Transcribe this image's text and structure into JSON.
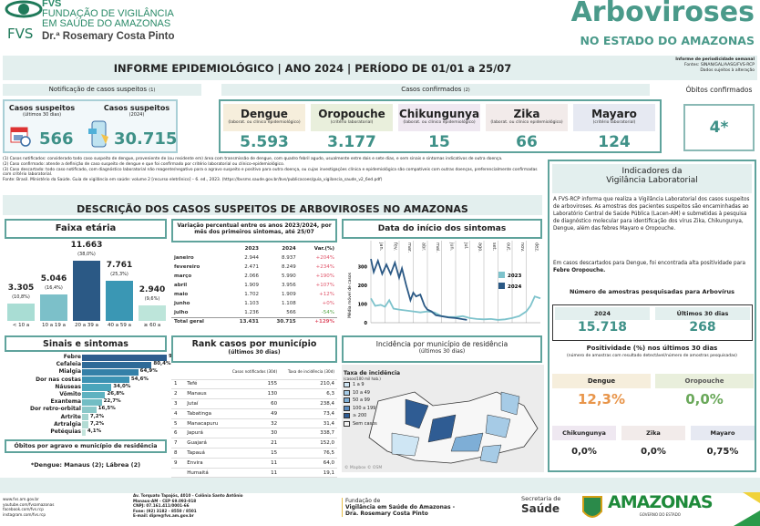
{
  "header": {
    "org_short": "FVS",
    "org_line1": "FUNDAÇÃO DE VIGILÂNCIA",
    "org_line2": "EM SAÚDE DO AMAZONAS",
    "org_line3": "Dr.ª Rosemary Costa Pinto",
    "title": "Arboviroses",
    "subtitle": "NO ESTADO DO AMAZONAS"
  },
  "banner": {
    "title": "INFORME EPIDEMIOLÓGICO | ANO 2024 | PERÍODO DE 01/01 a 25/07",
    "note1": "Informe de periodicidade semanal",
    "note2": "Fontes: SINAN/GAL/AASG/FVS-RCP",
    "note3": "Dados sujeitos à alteração"
  },
  "sections": {
    "suspeitos": "Notificação de casos suspeitos",
    "suspeitos_ref": "(1)",
    "confirmados": "Casos confirmados",
    "confirmados_ref": "(2)",
    "obitos": "Óbitos confirmados"
  },
  "suspeitos": [
    {
      "label": "Casos suspeitos",
      "sub": "(últimos 30 dias)",
      "value": "566"
    },
    {
      "label": "Casos suspeitos",
      "sub": "(2024)",
      "value": "30.715"
    }
  ],
  "confirmados": [
    {
      "name": "Dengue",
      "sub": "(laborat. ou clínico epidemiológico)",
      "value": "5.593",
      "bg": "#f6eedc"
    },
    {
      "name": "Oropouche",
      "sub": "(critério laboratorial)",
      "value": "3.177",
      "bg": "#e9efdc"
    },
    {
      "name": "Chikungunya",
      "sub": "(laborat. ou clínico epidemiológico)",
      "value": "15",
      "bg": "#efe8f1"
    },
    {
      "name": "Zika",
      "sub": "(laborat. ou clínico epidemiológico)",
      "value": "66",
      "bg": "#f2ebea"
    },
    {
      "name": "Mayaro",
      "sub": "(critério laboratorial)",
      "value": "124",
      "bg": "#e6e9f2"
    }
  ],
  "obitos": {
    "value": "4*"
  },
  "footnotes": [
    "(1) Casos notificados: considerado todo caso suspeito de dengue, proveniente de (ou residente em) área com transmissão de dengue, com quadro febril agudo, usualmente entre dois e sete dias, e sem sinais e sintomas indicativos de outra doença.",
    "(2) Caso confirmado: atende a definição de caso suspeito de dengue e que foi confirmado por critério laboratorial ou clínico-epidemiológico.",
    "(3) Caso descartado: todo caso notificado, com diagnóstico laboratorial não reagente/negativo para o agravo suspeito e positivo para outra doença, ou cujas investigações clínica e epidemiológica são compatíveis com outras doenças, preferencialmente confirmadas com critério laboratorial.",
    "Fonte: Brasil. Ministério da Saúde. Guia de vigilância em saúde: volume 2 [recurso eletrônico] – 6. ed., 2023. (https://bvsms.saude.gov.br/bvs/publicacoes/guia_vigilancia_saude_v2_6ed.pdf)"
  ],
  "descricao": {
    "title": "DESCRIÇÃO DOS CASOS SUSPEITOS DE ARBOVIROSES NO AMAZONAS"
  },
  "faixa": {
    "title": "Faixa etária",
    "bars": [
      {
        "label": "< 10 a",
        "value": "3.305",
        "pct": "(10,8%)",
        "n": 3305,
        "color": "#a9ddd4"
      },
      {
        "label": "10 a 19 a",
        "value": "5.046",
        "pct": "(16,4%)",
        "n": 5046,
        "color": "#7cc0c9"
      },
      {
        "label": "20 a 39 a",
        "value": "11.663",
        "pct": "(38,0%)",
        "n": 11663,
        "color": "#2b5985"
      },
      {
        "label": "40 a 59 a",
        "value": "7.761",
        "pct": "(25,3%)",
        "n": 7761,
        "color": "#3a97b4"
      },
      {
        "label": "≥ 60 a",
        "value": "2.940",
        "pct": "(9,6%)",
        "n": 2940,
        "color": "#bde5da"
      }
    ]
  },
  "variacao": {
    "title": "Variação percentual entre os anos 2023/2024, por mês dos primeiros sintomas, até 25/07",
    "cols": [
      "",
      "2023",
      "2024",
      "Var.(%)"
    ],
    "rows": [
      [
        "janeiro",
        "2.944",
        "8.937",
        "+204%"
      ],
      [
        "fevereiro",
        "2.471",
        "8.249",
        "+234%"
      ],
      [
        "março",
        "2.066",
        "5.990",
        "+190%"
      ],
      [
        "abril",
        "1.909",
        "3.956",
        "+107%"
      ],
      [
        "maio",
        "1.702",
        "1.909",
        "+12%"
      ],
      [
        "junho",
        "1.103",
        "1.108",
        "+0%"
      ],
      [
        "julho",
        "1.236",
        "566",
        "-54%"
      ],
      [
        "Total geral",
        "13.431",
        "30.715",
        "+129%"
      ]
    ]
  },
  "chart_data": [
    {
      "type": "line",
      "title": "Data do início dos sintomas",
      "ylabel": "Média móvel de casos",
      "categories": [
        "jan.",
        "fev.",
        "mar.",
        "abr.",
        "mai.",
        "jun.",
        "jul.",
        "ago.",
        "set.",
        "out.",
        "nov.",
        "dez."
      ],
      "ylim": [
        0,
        350
      ],
      "yticks": [
        0,
        100,
        200,
        300
      ],
      "legend": "right",
      "series": [
        {
          "name": "2023",
          "color": "#7ec3cc",
          "x": [
            0,
            0.3,
            0.7,
            1,
            1.3,
            1.6,
            2,
            2.5,
            3,
            3.5,
            4,
            4.5,
            5,
            5.5,
            6,
            6.5,
            7,
            7.5,
            8,
            8.5,
            9,
            9.5,
            10,
            10.5,
            11,
            11.3,
            11.6,
            12
          ],
          "values": [
            130,
            90,
            95,
            85,
            120,
            75,
            70,
            65,
            60,
            55,
            60,
            55,
            35,
            30,
            30,
            35,
            25,
            20,
            18,
            20,
            15,
            18,
            25,
            35,
            60,
            90,
            140,
            130
          ]
        },
        {
          "name": "2024",
          "color": "#2b5985",
          "x": [
            0,
            0.2,
            0.5,
            0.8,
            1.1,
            1.4,
            1.7,
            2,
            2.2,
            2.5,
            2.8,
            3,
            3.2,
            3.5,
            3.8,
            4,
            4.3,
            4.6,
            5,
            5.5,
            6,
            6.4,
            6.8
          ],
          "values": [
            340,
            270,
            330,
            260,
            310,
            260,
            320,
            240,
            290,
            200,
            120,
            160,
            140,
            150,
            90,
            70,
            60,
            40,
            35,
            28,
            25,
            20,
            15
          ]
        }
      ]
    },
    {
      "type": "bar",
      "orientation": "horizontal",
      "title": "Sinais e sintomas",
      "categories": [
        "Febre",
        "Cefaleia",
        "Mialgia",
        "Dor nas costas",
        "Náuseas",
        "Vômito",
        "Exantema",
        "Dor retro-orbital",
        "Artrite",
        "Artralgia",
        "Petéquias"
      ],
      "values": [
        97.9,
        80.4,
        64.9,
        54.6,
        34.0,
        26.8,
        22.7,
        16.5,
        7.2,
        7.2,
        4.1
      ],
      "labels": [
        "97,9%",
        "80,4%",
        "64,9%",
        "54,6%",
        "34,0%",
        "26,8%",
        "22,7%",
        "16,5%",
        "7,2%",
        "7,2%",
        "4,1%"
      ],
      "xlim": [
        0,
        100
      ]
    }
  ],
  "obitos_agravo": {
    "title": "Óbitos por agravo e município de residência",
    "text": "*Dengue: Manaus (2); Lábrea (2)"
  },
  "rank": {
    "title": "Rank casos por município",
    "subtitle": "(últimos 30 dias)",
    "cols": [
      "Casos notificados (30d)",
      "Taxa de incidência (30d)"
    ],
    "rows": [
      [
        "1",
        "Tefé",
        "155",
        "210,4"
      ],
      [
        "2",
        "Manaus",
        "130",
        "6,3"
      ],
      [
        "3",
        "Jutaí",
        "60",
        "238,4"
      ],
      [
        "4",
        "Tabatinga",
        "49",
        "73,4"
      ],
      [
        "5",
        "Manacapuru",
        "32",
        "31,4"
      ],
      [
        "6",
        "Japurá",
        "30",
        "338,7"
      ],
      [
        "7",
        "Guajará",
        "21",
        "152,0"
      ],
      [
        "8",
        "Tapauá",
        "15",
        "76,5"
      ],
      [
        "9",
        "Envira",
        "11",
        "64,0"
      ],
      [
        "",
        "Humaitá",
        "11",
        "19,1"
      ],
      [
        "10",
        "Iranduba",
        "8",
        "13,1"
      ]
    ]
  },
  "mapa": {
    "title": "Incidência por município de residência",
    "subtitle": "(últimos 30 dias)",
    "legend_title": "Taxa de incidência",
    "legend_sub": "(casos/100 mil hab.)",
    "legend": [
      {
        "label": "1 a 9",
        "color": "#cfe6f4"
      },
      {
        "label": "10 a 49",
        "color": "#a6cbe6"
      },
      {
        "label": "50 a 99",
        "color": "#7eaed6"
      },
      {
        "label": "100 a 199",
        "color": "#5b8cc0"
      },
      {
        "label": "≥ 200",
        "color": "#2f5c93"
      },
      {
        "label": "Sem casos",
        "color": "#f3f3f3"
      }
    ],
    "credit": "© Mapbox © OSM"
  },
  "lab": {
    "title1": "Indicadores da",
    "title2": "Vigilância Laboratorial",
    "p1": "A FVS-RCP informa que realiza a Vigilância Laboratorial dos casos suspeitos de arboviroses. As amostras dos pacientes suspeitos são encaminhadas ao Laboratório Central de Saúde Pública (Lacen-AM) e submetidas à pesquisa de diagnóstico molecular para identificação dos vírus Zika, Chikungunya, Dengue, além das febres Mayaro e Oropouche.",
    "p2a": "Em casos descartados para Dengue, foi encontrada alta positividade para ",
    "p2b": "Febre Oropouche.",
    "amostras_title": "Número de amostras pesquisadas para Arbovírus",
    "amostras": [
      {
        "label": "2024",
        "value": "15.718"
      },
      {
        "label": "Últimos 30 dias",
        "value": "268"
      }
    ],
    "pos_title": "Positividade (%) nos últimos 30 dias",
    "pos_sub": "(número de amostras com resultado detectável/número de amostras pesquisadas)",
    "pos_big": [
      {
        "label": "Dengue",
        "value": "12,3%",
        "bg": "#f6eedc",
        "color": "#e8954a"
      },
      {
        "label": "Oropouche",
        "value": "0,0%",
        "bg": "#e9efdc",
        "color": "#6aa85a"
      }
    ],
    "pos_small": [
      {
        "label": "Chikungunya",
        "value": "0,0%",
        "bg": "#efe8f1"
      },
      {
        "label": "Zika",
        "value": "0,0%",
        "bg": "#f2ebea"
      },
      {
        "label": "Mayaro",
        "value": "0,75%",
        "bg": "#e6e9f2"
      }
    ]
  },
  "footer": {
    "links": [
      "www.fvs.am.gov.br",
      "youtube.com/fvsamazonas",
      "facebook.com/fvs.rcp",
      "instagram.com/fvs.rcp"
    ],
    "address": [
      "Av. Torquato Tapajós, 4010 - Colônia Santo Antônio",
      "Manaus-AM - CEP 69.093-018",
      "CNPJ: 07.161.411/0001-66",
      "Fone: (92) 3182 - 8550 / 8501",
      "E-mail: dipre@fvs.am.gov.br"
    ],
    "fvs1": "Fundação de",
    "fvs2": "Vigilância em Saúde do Amazonas -",
    "fvs3": "Dra. Rosemary Costa Pinto",
    "sec1": "Secretaria de",
    "sec2": "Saúde",
    "gov1": "AMAZONAS",
    "gov2": "GOVERNO DO ESTADO"
  }
}
